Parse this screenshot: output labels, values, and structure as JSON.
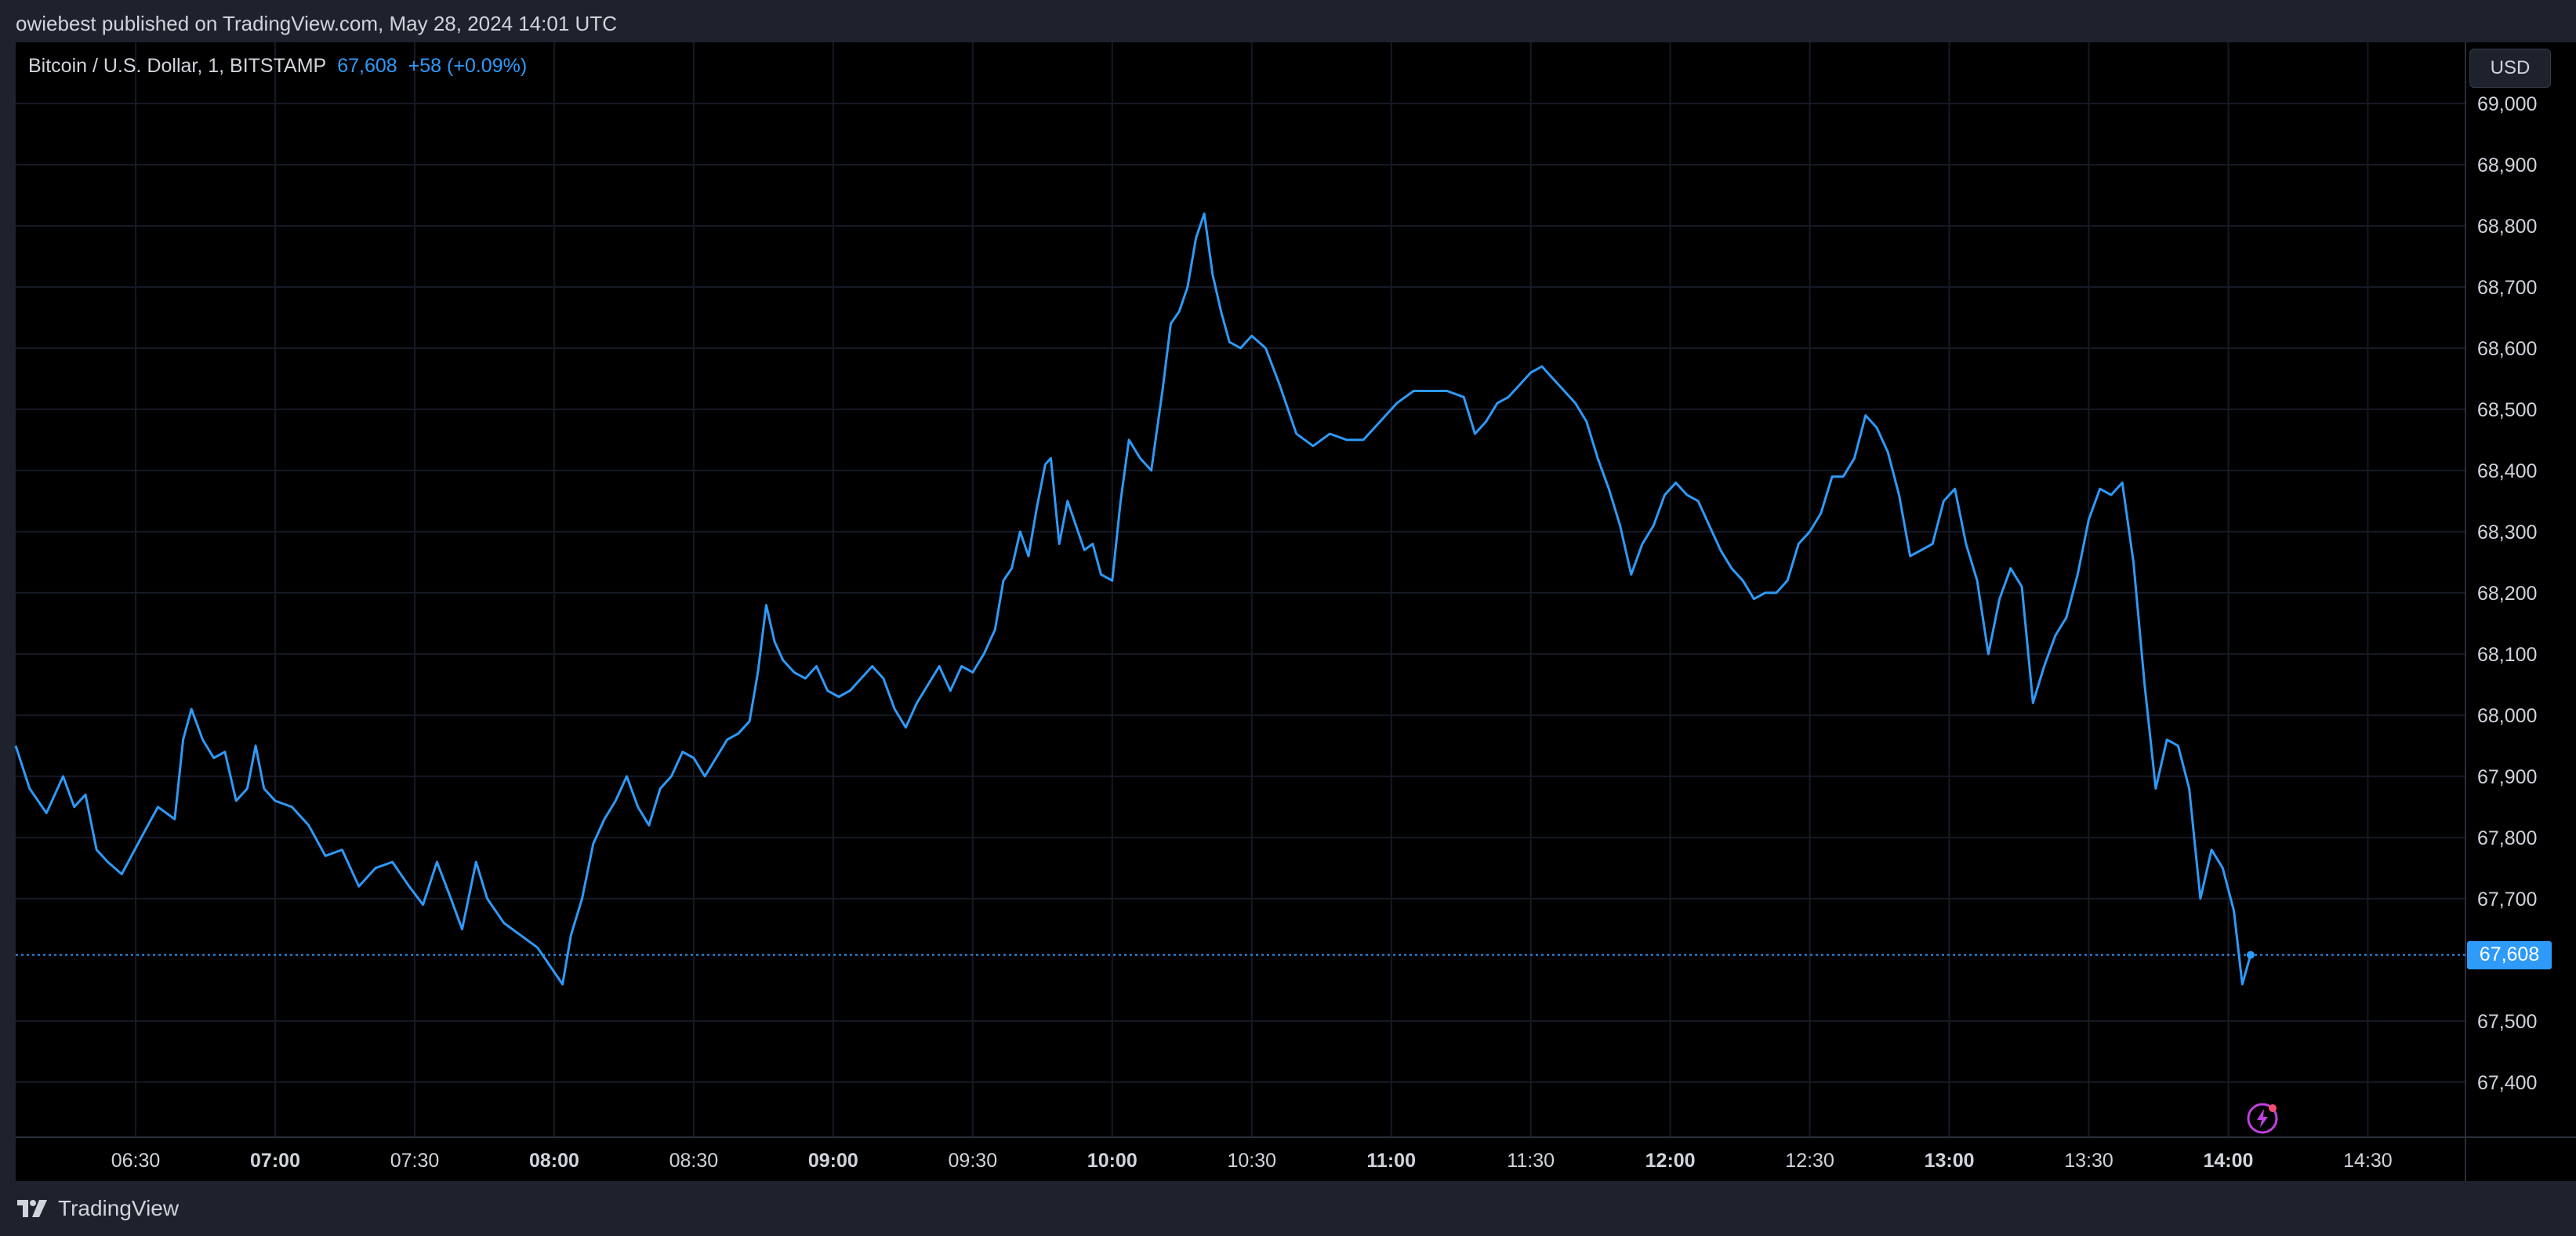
{
  "header": {
    "published_text": "owiebest published on TradingView.com, May 28, 2024 14:01 UTC"
  },
  "legend": {
    "symbol": "Bitcoin / U.S. Dollar, 1, BITSTAMP",
    "price": "67,608",
    "change": "+58 (+0.09%)"
  },
  "currency_label": "USD",
  "last_price_label": "67,608",
  "brand": {
    "name": "TradingView"
  },
  "colors": {
    "line": "#2e9af9",
    "background": "#000000",
    "panel": "#1e222d",
    "grid": "#161a25",
    "text": "#d1d4dc",
    "flash": "#c041e0"
  },
  "chart_data": {
    "type": "line",
    "title": "Bitcoin / U.S. Dollar, 1, BITSTAMP",
    "xlabel": "",
    "ylabel": "",
    "x_ticks": [
      {
        "label": "06:30",
        "hour": 6.5,
        "bold": false
      },
      {
        "label": "07:00",
        "hour": 7.0,
        "bold": true
      },
      {
        "label": "07:30",
        "hour": 7.5,
        "bold": false
      },
      {
        "label": "08:00",
        "hour": 8.0,
        "bold": true
      },
      {
        "label": "08:30",
        "hour": 8.5,
        "bold": false
      },
      {
        "label": "09:00",
        "hour": 9.0,
        "bold": true
      },
      {
        "label": "09:30",
        "hour": 9.5,
        "bold": false
      },
      {
        "label": "10:00",
        "hour": 10.0,
        "bold": true
      },
      {
        "label": "10:30",
        "hour": 10.5,
        "bold": false
      },
      {
        "label": "11:00",
        "hour": 11.0,
        "bold": true
      },
      {
        "label": "11:30",
        "hour": 11.5,
        "bold": false
      },
      {
        "label": "12:00",
        "hour": 12.0,
        "bold": true
      },
      {
        "label": "12:30",
        "hour": 12.5,
        "bold": false
      },
      {
        "label": "13:00",
        "hour": 13.0,
        "bold": true
      },
      {
        "label": "13:30",
        "hour": 13.5,
        "bold": false
      },
      {
        "label": "14:00",
        "hour": 14.0,
        "bold": true
      },
      {
        "label": "14:30",
        "hour": 14.5,
        "bold": false
      }
    ],
    "y_ticks": [
      {
        "label": "69,000",
        "value": 69000
      },
      {
        "label": "68,900",
        "value": 68900
      },
      {
        "label": "68,800",
        "value": 68800
      },
      {
        "label": "68,700",
        "value": 68700
      },
      {
        "label": "68,600",
        "value": 68600
      },
      {
        "label": "68,500",
        "value": 68500
      },
      {
        "label": "68,400",
        "value": 68400
      },
      {
        "label": "68,300",
        "value": 68300
      },
      {
        "label": "68,200",
        "value": 68200
      },
      {
        "label": "68,100",
        "value": 68100
      },
      {
        "label": "68,000",
        "value": 68000
      },
      {
        "label": "67,900",
        "value": 67900
      },
      {
        "label": "67,800",
        "value": 67800
      },
      {
        "label": "67,700",
        "value": 67700
      },
      {
        "label": "67,500",
        "value": 67500
      },
      {
        "label": "67,400",
        "value": 67400
      }
    ],
    "xlim": [
      6.07,
      14.85
    ],
    "ylim": [
      67310,
      69100
    ],
    "last_price": 67608,
    "grid": true,
    "series": [
      {
        "values": [
          [
            6.07,
            67950
          ],
          [
            6.12,
            67880
          ],
          [
            6.18,
            67840
          ],
          [
            6.24,
            67900
          ],
          [
            6.28,
            67850
          ],
          [
            6.32,
            67870
          ],
          [
            6.36,
            67780
          ],
          [
            6.4,
            67760
          ],
          [
            6.45,
            67740
          ],
          [
            6.52,
            67800
          ],
          [
            6.58,
            67850
          ],
          [
            6.64,
            67830
          ],
          [
            6.67,
            67960
          ],
          [
            6.7,
            68010
          ],
          [
            6.74,
            67960
          ],
          [
            6.78,
            67930
          ],
          [
            6.82,
            67940
          ],
          [
            6.86,
            67860
          ],
          [
            6.9,
            67880
          ],
          [
            6.93,
            67950
          ],
          [
            6.96,
            67880
          ],
          [
            7.0,
            67860
          ],
          [
            7.06,
            67850
          ],
          [
            7.12,
            67820
          ],
          [
            7.18,
            67770
          ],
          [
            7.24,
            67780
          ],
          [
            7.3,
            67720
          ],
          [
            7.36,
            67750
          ],
          [
            7.42,
            67760
          ],
          [
            7.48,
            67720
          ],
          [
            7.53,
            67690
          ],
          [
            7.58,
            67760
          ],
          [
            7.63,
            67700
          ],
          [
            7.67,
            67650
          ],
          [
            7.72,
            67760
          ],
          [
            7.76,
            67700
          ],
          [
            7.82,
            67660
          ],
          [
            7.88,
            67640
          ],
          [
            7.94,
            67620
          ],
          [
            8.0,
            67580
          ],
          [
            8.03,
            67560
          ],
          [
            8.06,
            67640
          ],
          [
            8.1,
            67700
          ],
          [
            8.14,
            67790
          ],
          [
            8.18,
            67830
          ],
          [
            8.22,
            67860
          ],
          [
            8.26,
            67900
          ],
          [
            8.3,
            67850
          ],
          [
            8.34,
            67820
          ],
          [
            8.38,
            67880
          ],
          [
            8.42,
            67900
          ],
          [
            8.46,
            67940
          ],
          [
            8.5,
            67930
          ],
          [
            8.54,
            67900
          ],
          [
            8.58,
            67930
          ],
          [
            8.62,
            67960
          ],
          [
            8.66,
            67970
          ],
          [
            8.7,
            67990
          ],
          [
            8.73,
            68070
          ],
          [
            8.76,
            68180
          ],
          [
            8.79,
            68120
          ],
          [
            8.82,
            68090
          ],
          [
            8.86,
            68070
          ],
          [
            8.9,
            68060
          ],
          [
            8.94,
            68080
          ],
          [
            8.98,
            68040
          ],
          [
            9.02,
            68030
          ],
          [
            9.06,
            68040
          ],
          [
            9.1,
            68060
          ],
          [
            9.14,
            68080
          ],
          [
            9.18,
            68060
          ],
          [
            9.22,
            68010
          ],
          [
            9.26,
            67980
          ],
          [
            9.3,
            68020
          ],
          [
            9.34,
            68050
          ],
          [
            9.38,
            68080
          ],
          [
            9.42,
            68040
          ],
          [
            9.46,
            68080
          ],
          [
            9.5,
            68070
          ],
          [
            9.54,
            68100
          ],
          [
            9.58,
            68140
          ],
          [
            9.61,
            68220
          ],
          [
            9.64,
            68240
          ],
          [
            9.67,
            68300
          ],
          [
            9.7,
            68260
          ],
          [
            9.73,
            68340
          ],
          [
            9.76,
            68410
          ],
          [
            9.78,
            68420
          ],
          [
            9.81,
            68280
          ],
          [
            9.84,
            68350
          ],
          [
            9.87,
            68310
          ],
          [
            9.9,
            68270
          ],
          [
            9.93,
            68280
          ],
          [
            9.96,
            68230
          ],
          [
            10.0,
            68220
          ],
          [
            10.03,
            68350
          ],
          [
            10.06,
            68450
          ],
          [
            10.1,
            68420
          ],
          [
            10.14,
            68400
          ],
          [
            10.18,
            68530
          ],
          [
            10.21,
            68640
          ],
          [
            10.24,
            68660
          ],
          [
            10.27,
            68700
          ],
          [
            10.3,
            68780
          ],
          [
            10.33,
            68820
          ],
          [
            10.36,
            68720
          ],
          [
            10.39,
            68660
          ],
          [
            10.42,
            68610
          ],
          [
            10.46,
            68600
          ],
          [
            10.5,
            68620
          ],
          [
            10.55,
            68600
          ],
          [
            10.6,
            68540
          ],
          [
            10.66,
            68460
          ],
          [
            10.72,
            68440
          ],
          [
            10.78,
            68460
          ],
          [
            10.84,
            68450
          ],
          [
            10.9,
            68450
          ],
          [
            10.96,
            68480
          ],
          [
            11.02,
            68510
          ],
          [
            11.08,
            68530
          ],
          [
            11.14,
            68530
          ],
          [
            11.2,
            68530
          ],
          [
            11.26,
            68520
          ],
          [
            11.3,
            68460
          ],
          [
            11.34,
            68480
          ],
          [
            11.38,
            68510
          ],
          [
            11.42,
            68520
          ],
          [
            11.46,
            68540
          ],
          [
            11.5,
            68560
          ],
          [
            11.54,
            68570
          ],
          [
            11.58,
            68550
          ],
          [
            11.62,
            68530
          ],
          [
            11.66,
            68510
          ],
          [
            11.7,
            68480
          ],
          [
            11.74,
            68420
          ],
          [
            11.78,
            68370
          ],
          [
            11.82,
            68310
          ],
          [
            11.86,
            68230
          ],
          [
            11.9,
            68280
          ],
          [
            11.94,
            68310
          ],
          [
            11.98,
            68360
          ],
          [
            12.02,
            68380
          ],
          [
            12.06,
            68360
          ],
          [
            12.1,
            68350
          ],
          [
            12.14,
            68310
          ],
          [
            12.18,
            68270
          ],
          [
            12.22,
            68240
          ],
          [
            12.26,
            68220
          ],
          [
            12.3,
            68190
          ],
          [
            12.34,
            68200
          ],
          [
            12.38,
            68200
          ],
          [
            12.42,
            68220
          ],
          [
            12.46,
            68280
          ],
          [
            12.5,
            68300
          ],
          [
            12.54,
            68330
          ],
          [
            12.58,
            68390
          ],
          [
            12.62,
            68390
          ],
          [
            12.66,
            68420
          ],
          [
            12.7,
            68490
          ],
          [
            12.74,
            68470
          ],
          [
            12.78,
            68430
          ],
          [
            12.82,
            68360
          ],
          [
            12.86,
            68260
          ],
          [
            12.9,
            68270
          ],
          [
            12.94,
            68280
          ],
          [
            12.98,
            68350
          ],
          [
            13.02,
            68370
          ],
          [
            13.06,
            68280
          ],
          [
            13.1,
            68220
          ],
          [
            13.14,
            68100
          ],
          [
            13.18,
            68190
          ],
          [
            13.22,
            68240
          ],
          [
            13.26,
            68210
          ],
          [
            13.3,
            68020
          ],
          [
            13.34,
            68080
          ],
          [
            13.38,
            68130
          ],
          [
            13.42,
            68160
          ],
          [
            13.46,
            68230
          ],
          [
            13.5,
            68320
          ],
          [
            13.54,
            68370
          ],
          [
            13.58,
            68360
          ],
          [
            13.62,
            68380
          ],
          [
            13.66,
            68250
          ],
          [
            13.7,
            68050
          ],
          [
            13.74,
            67880
          ],
          [
            13.78,
            67960
          ],
          [
            13.82,
            67950
          ],
          [
            13.86,
            67880
          ],
          [
            13.9,
            67700
          ],
          [
            13.94,
            67780
          ],
          [
            13.98,
            67750
          ],
          [
            14.02,
            67680
          ],
          [
            14.05,
            67560
          ],
          [
            14.08,
            67608
          ]
        ]
      }
    ]
  }
}
